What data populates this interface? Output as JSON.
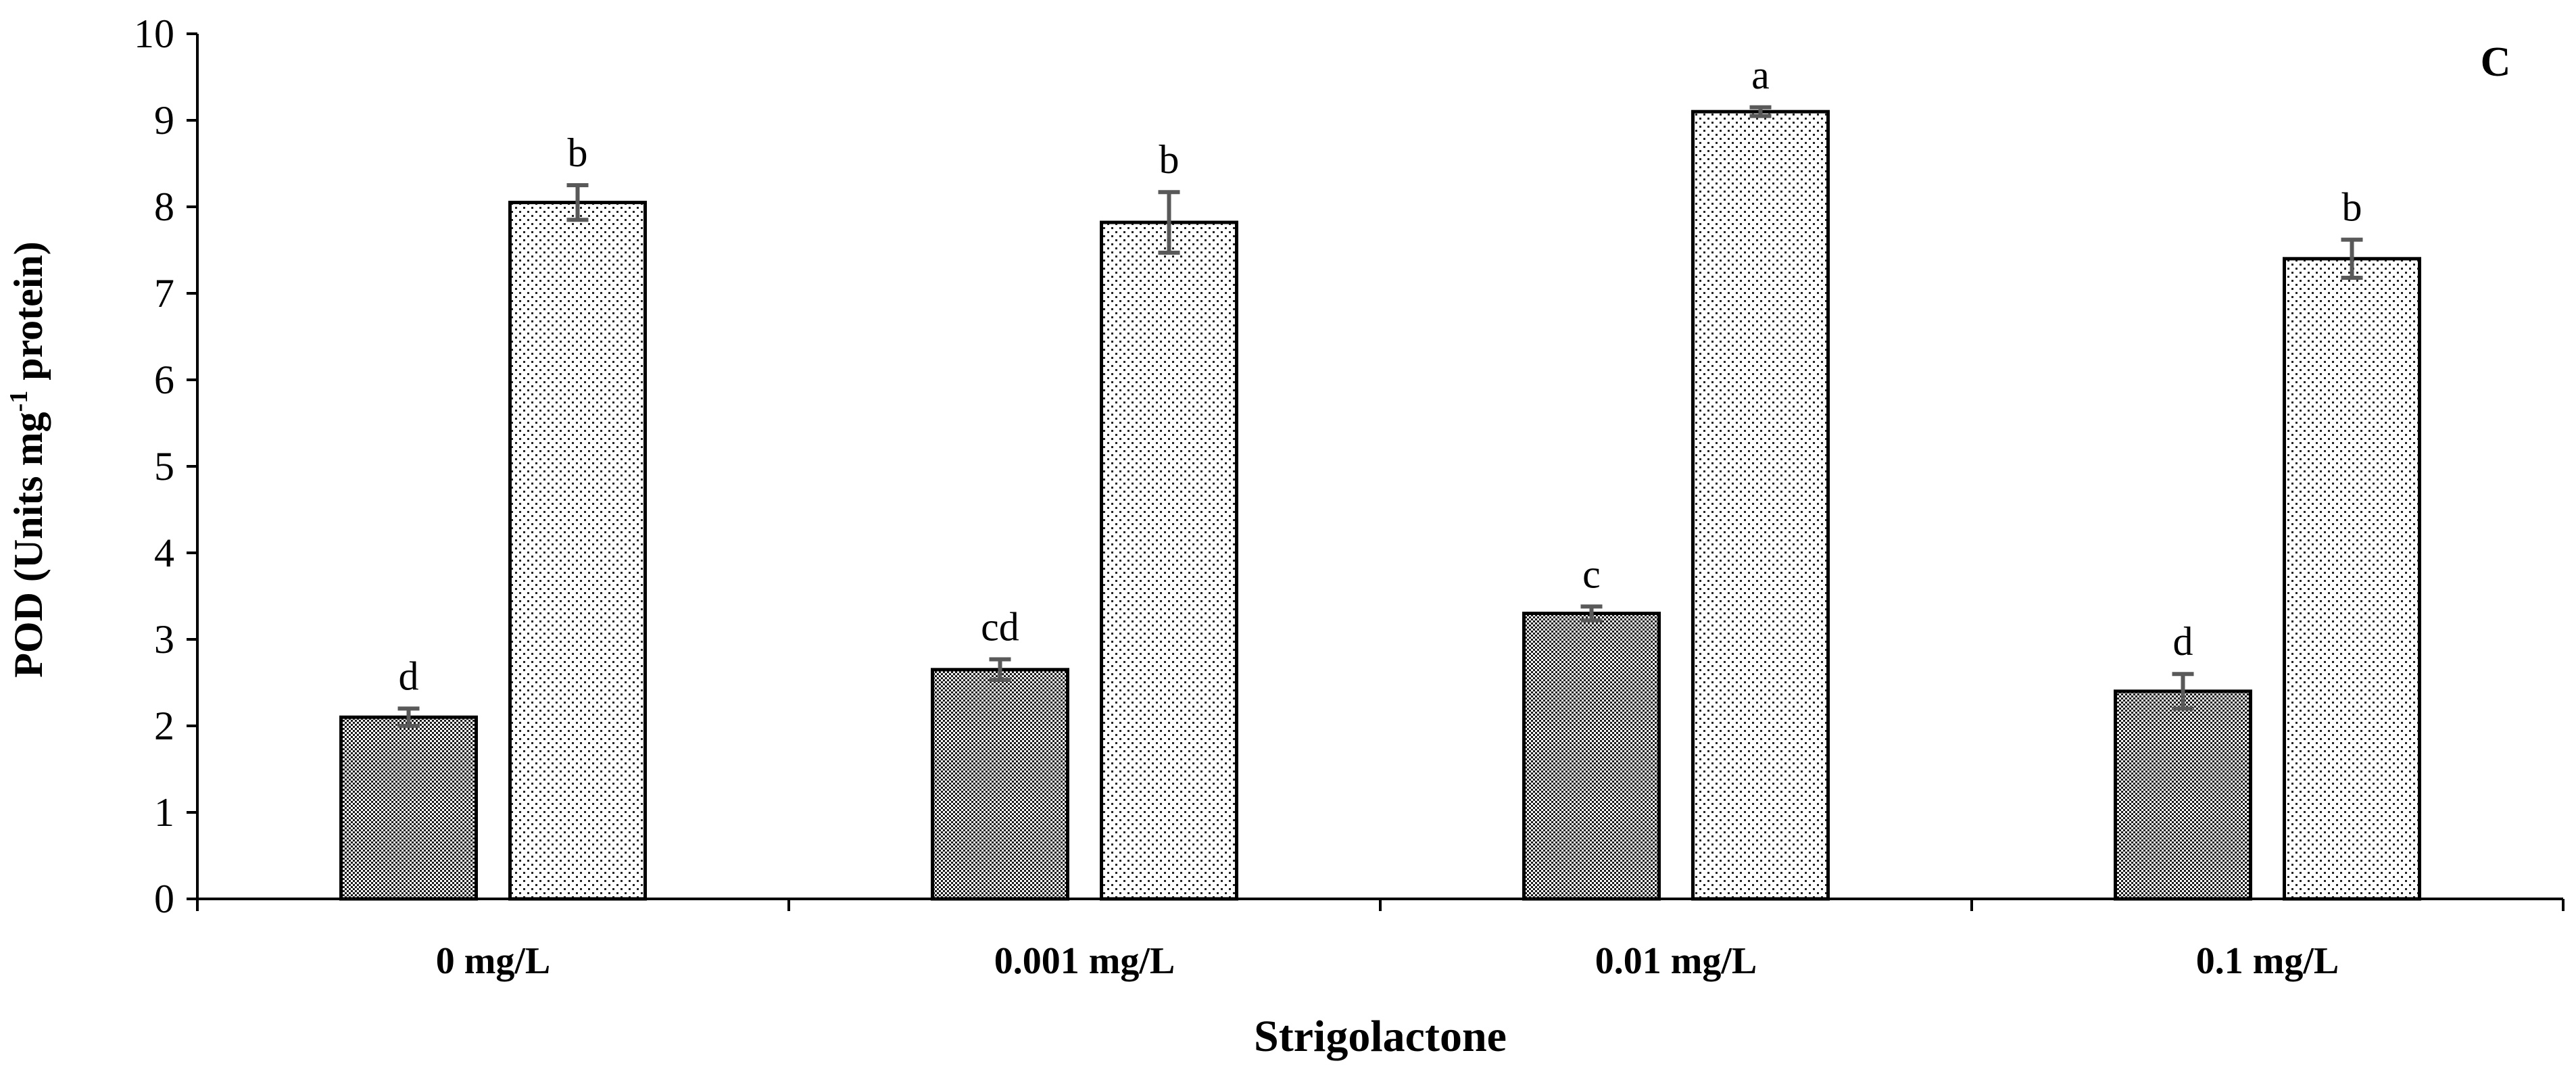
{
  "chart_data": {
    "type": "bar",
    "panel_label": "C",
    "xlabel": "Strigolactone",
    "ylabel_main": "POD (Units mg",
    "ylabel_sup": "-1",
    "ylabel_tail": " protein)",
    "ylim": [
      0,
      10
    ],
    "yticks": [
      0,
      1,
      2,
      3,
      4,
      5,
      6,
      7,
      8,
      9,
      10
    ],
    "categories": [
      "0 mg/L",
      "0.001 mg/L",
      "0.01 mg/L",
      "0.1 mg/L"
    ],
    "series": [
      {
        "name": "dense-pattern",
        "values": [
          2.1,
          2.65,
          3.3,
          2.4
        ],
        "errors": [
          0.1,
          0.12,
          0.08,
          0.2
        ],
        "labels": [
          "d",
          "cd",
          "c",
          "d"
        ]
      },
      {
        "name": "sparse-pattern",
        "values": [
          8.05,
          7.82,
          9.1,
          7.4
        ],
        "errors": [
          0.2,
          0.35,
          0.05,
          0.22
        ],
        "labels": [
          "b",
          "b",
          "a",
          "b"
        ]
      }
    ],
    "legend": "none",
    "grid": false
  }
}
